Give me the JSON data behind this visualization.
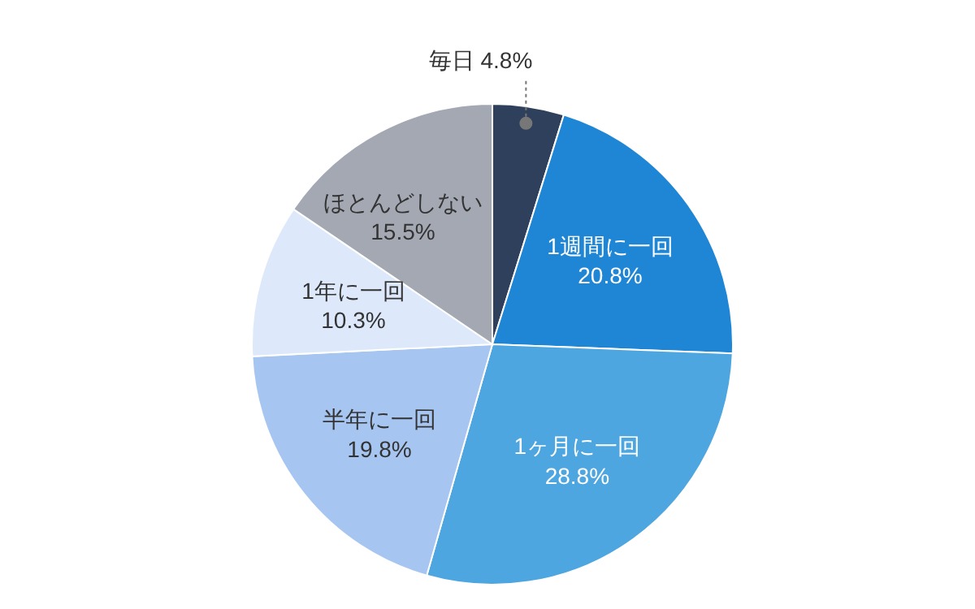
{
  "chart_data": {
    "type": "pie",
    "categories": [
      "毎日",
      "1週間に一回",
      "1ヶ月に一回",
      "半年に一回",
      "1年に一回",
      "ほとんどしない"
    ],
    "values": [
      4.8,
      20.8,
      28.8,
      19.8,
      10.3,
      15.5
    ],
    "value_labels": [
      "4.8%",
      "20.8%",
      "28.8%",
      "19.8%",
      "10.3%",
      "15.5%"
    ],
    "colors": [
      "#2f405c",
      "#1f86d6",
      "#4ea6e0",
      "#a6c5f0",
      "#dde9fb",
      "#a3a8b3"
    ],
    "legend": false
  }
}
